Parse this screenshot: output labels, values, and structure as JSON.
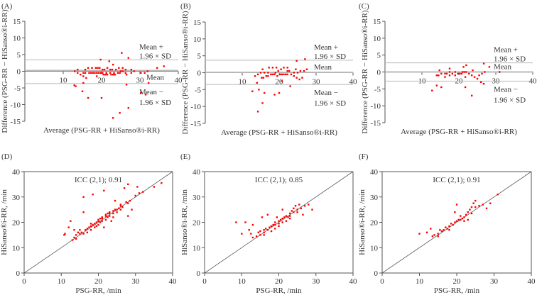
{
  "colors": {
    "points": "#ff0000",
    "axis": "#555555",
    "refline": "#b8b8b8",
    "identity": "#555555"
  },
  "chart_data": [
    {
      "panel": "(A)",
      "type": "scatter",
      "kind": "bland-altman",
      "source_pairs": "D",
      "xlabel": "Average (PSG-RR + HiSanso®i-RR)",
      "ylabel": "Difference (PSG-RR − HiSanso®i-RR)",
      "xlim": [
        0,
        40
      ],
      "ylim": [
        -15,
        15
      ],
      "xticks": [
        "10",
        "20",
        "30",
        "40"
      ],
      "yticks": [
        "15",
        "10",
        "5",
        "0",
        "-5",
        "-10",
        "-15"
      ],
      "mean": 0.2,
      "upper_loa": 3.4,
      "lower_loa": -3.7,
      "labels": {
        "upper1": "Mean +",
        "upper2": "1.96 × SD",
        "mean": "Mean",
        "lower1": "Mean −",
        "lower2": "1.96 × SD"
      }
    },
    {
      "panel": "(B)",
      "type": "scatter",
      "kind": "bland-altman",
      "source_pairs": "E",
      "xlabel": "Average (PSG-RR + HiSanso®i-RR)",
      "ylabel": "Difference (PSG-RR − HiSanso®i-RR)",
      "xlim": [
        0,
        40
      ],
      "ylim": [
        -15,
        15
      ],
      "xticks": [
        "10",
        "20",
        "30",
        "40"
      ],
      "yticks": [
        "15",
        "10",
        "5",
        "0",
        "-5",
        "-10",
        "-15"
      ],
      "mean": 0.1,
      "upper_loa": 3.7,
      "lower_loa": -3.5,
      "labels": {
        "upper1": "Mean +",
        "upper2": "1.96 × SD",
        "mean": "Mean",
        "lower1": "Mean −",
        "lower2": "1.96 × SD"
      }
    },
    {
      "panel": "(C)",
      "type": "scatter",
      "kind": "bland-altman",
      "source_pairs": "F",
      "xlabel": "Average (PSG-RR + HiSanso®i-RR)",
      "ylabel": "Difference (PSG-RR − HiSanso®i-RR)",
      "xlim": [
        0,
        40
      ],
      "ylim": [
        -15,
        15
      ],
      "xticks": [
        "10",
        "20",
        "30",
        "40"
      ],
      "yticks": [
        "15",
        "10",
        "5",
        "0",
        "-5",
        "-10",
        "-15"
      ],
      "mean": 0.0,
      "upper_loa": 2.7,
      "lower_loa": -2.7,
      "labels": {
        "upper1": "Mean +",
        "upper2": "1.96 × SD",
        "mean": "Mean",
        "lower1": "Mean −",
        "lower2": "1.96 × SD"
      }
    },
    {
      "panel": "(D)",
      "type": "scatter",
      "kind": "agreement",
      "xlabel": "PSG-RR, /min",
      "ylabel": "HiSanso®i-RR, /min",
      "xlim": [
        0,
        40
      ],
      "ylim": [
        0,
        40
      ],
      "xticks": [
        "0",
        "10",
        "20",
        "30",
        "40"
      ],
      "yticks": [
        "0",
        "10",
        "20",
        "30",
        "40"
      ],
      "annotation": "ICC (2,1); 0.91",
      "points": [
        [
          11,
          15.5
        ],
        [
          10.8,
          15
        ],
        [
          12,
          18
        ],
        [
          12.5,
          20.5
        ],
        [
          13,
          13
        ],
        [
          13.5,
          14
        ],
        [
          13.5,
          17
        ],
        [
          14,
          15
        ],
        [
          14.5,
          16
        ],
        [
          15,
          15.5
        ],
        [
          15,
          17
        ],
        [
          15.5,
          16
        ],
        [
          16,
          24
        ],
        [
          16,
          30
        ],
        [
          16.5,
          17
        ],
        [
          17,
          17.5
        ],
        [
          17.5,
          18
        ],
        [
          18,
          18.5
        ],
        [
          18.5,
          31
        ],
        [
          18.5,
          19
        ],
        [
          19,
          19.5
        ],
        [
          19.5,
          20
        ],
        [
          19.5,
          18.5
        ],
        [
          20,
          20.5
        ],
        [
          20,
          21
        ],
        [
          20.5,
          20
        ],
        [
          21,
          21.5
        ],
        [
          21,
          22
        ],
        [
          21.5,
          32.5
        ],
        [
          21.5,
          18
        ],
        [
          22,
          22.5
        ],
        [
          22,
          23
        ],
        [
          22.5,
          22
        ],
        [
          23,
          23.5
        ],
        [
          23,
          24
        ],
        [
          23.5,
          20.5
        ],
        [
          24,
          24.5
        ],
        [
          24,
          23.5
        ],
        [
          24.5,
          28.5
        ],
        [
          25,
          25
        ],
        [
          25.5,
          25.5
        ],
        [
          26,
          26.5
        ],
        [
          26.5,
          26
        ],
        [
          27,
          33.5
        ],
        [
          27.5,
          28
        ],
        [
          28,
          35
        ],
        [
          28,
          22.5
        ],
        [
          28,
          27.5
        ],
        [
          28.5,
          28.5
        ],
        [
          29,
          25
        ],
        [
          30,
          30.5
        ],
        [
          30.5,
          34
        ],
        [
          31,
          31.5
        ],
        [
          32,
          32
        ],
        [
          35,
          34
        ],
        [
          37,
          35.5
        ],
        [
          17,
          16
        ],
        [
          18,
          17
        ],
        [
          19,
          18
        ],
        [
          20,
          19
        ],
        [
          21,
          20.5
        ],
        [
          22,
          21
        ],
        [
          23,
          22.5
        ],
        [
          24,
          22
        ],
        [
          25,
          24
        ],
        [
          26,
          25
        ],
        [
          14,
          13.5
        ],
        [
          16,
          15.5
        ],
        [
          18,
          19.5
        ],
        [
          20.5,
          21.5
        ],
        [
          22.5,
          23.5
        ],
        [
          24.5,
          25
        ],
        [
          26,
          27
        ]
      ]
    },
    {
      "panel": "(E)",
      "type": "scatter",
      "kind": "agreement",
      "xlabel": "PSG-RR, /min",
      "ylabel": "HiSanso®i-RR, /min",
      "xlim": [
        0,
        40
      ],
      "ylim": [
        0,
        40
      ],
      "xticks": [
        "0",
        "10",
        "20",
        "30",
        "40"
      ],
      "yticks": [
        "0",
        "10",
        "20",
        "30",
        "40"
      ],
      "annotation": "ICC (2,1); 0.85",
      "points": [
        [
          8.5,
          20
        ],
        [
          10,
          15.5
        ],
        [
          11,
          20
        ],
        [
          12,
          17
        ],
        [
          12.5,
          15.5
        ],
        [
          13,
          14
        ],
        [
          13,
          19
        ],
        [
          14,
          14.5
        ],
        [
          14.5,
          16
        ],
        [
          15,
          15
        ],
        [
          15,
          16.5
        ],
        [
          15.5,
          22
        ],
        [
          16,
          16
        ],
        [
          16,
          17
        ],
        [
          16.5,
          17.5
        ],
        [
          17,
          17
        ],
        [
          17,
          23
        ],
        [
          17.5,
          18
        ],
        [
          18,
          18.5
        ],
        [
          18.5,
          19
        ],
        [
          19,
          19
        ],
        [
          19,
          20
        ],
        [
          19.5,
          22
        ],
        [
          20,
          20.5
        ],
        [
          20,
          19.5
        ],
        [
          20.5,
          21
        ],
        [
          21,
          21.5
        ],
        [
          21,
          25
        ],
        [
          21.5,
          22
        ],
        [
          22,
          22.5
        ],
        [
          22.5,
          22
        ],
        [
          23,
          23.5
        ],
        [
          23,
          21.5
        ],
        [
          23.5,
          24.5
        ],
        [
          24,
          24
        ],
        [
          24,
          25.5
        ],
        [
          24.5,
          26.5
        ],
        [
          25,
          25
        ],
        [
          25.5,
          27
        ],
        [
          26,
          25.5
        ],
        [
          26.5,
          23
        ],
        [
          27,
          26.5
        ],
        [
          28,
          27
        ],
        [
          29,
          25
        ],
        [
          19,
          17.5
        ],
        [
          20,
          18.5
        ],
        [
          22,
          20.5
        ],
        [
          18,
          16.5
        ],
        [
          16,
          15
        ],
        [
          21,
          20
        ],
        [
          23,
          22.5
        ],
        [
          25,
          24
        ]
      ]
    },
    {
      "panel": "(F)",
      "type": "scatter",
      "kind": "agreement",
      "xlabel": "PSG-RR, /min",
      "ylabel": "HiSanso®i-RR, /min",
      "xlim": [
        0,
        40
      ],
      "ylim": [
        0,
        40
      ],
      "xticks": [
        "0",
        "10",
        "20",
        "30",
        "40"
      ],
      "yticks": [
        "0",
        "10",
        "20",
        "30",
        "40"
      ],
      "annotation": "ICC (2,1); 0.91",
      "points": [
        [
          10,
          15.5
        ],
        [
          12,
          16
        ],
        [
          13,
          17.5
        ],
        [
          13.5,
          14.5
        ],
        [
          14,
          15
        ],
        [
          15,
          15.5
        ],
        [
          15.5,
          17
        ],
        [
          16,
          16.5
        ],
        [
          16.5,
          17
        ],
        [
          17,
          18
        ],
        [
          17.5,
          17.5
        ],
        [
          18,
          18.5
        ],
        [
          18.5,
          19.5
        ],
        [
          19,
          19
        ],
        [
          19.5,
          20
        ],
        [
          19.5,
          24
        ],
        [
          20,
          20.5
        ],
        [
          20,
          27
        ],
        [
          20.5,
          21
        ],
        [
          21,
          21
        ],
        [
          21,
          22.5
        ],
        [
          21.5,
          21.5
        ],
        [
          22,
          22
        ],
        [
          22.5,
          23
        ],
        [
          23,
          24
        ],
        [
          23,
          21
        ],
        [
          23.5,
          25
        ],
        [
          24,
          26
        ],
        [
          24,
          23.5
        ],
        [
          24.5,
          27.5
        ],
        [
          25,
          28.5
        ],
        [
          25,
          26
        ],
        [
          26,
          26.5
        ],
        [
          27,
          27
        ],
        [
          28,
          25.5
        ],
        [
          29,
          27.5
        ],
        [
          31,
          31
        ],
        [
          18,
          17
        ],
        [
          22,
          20.5
        ],
        [
          15,
          14.5
        ]
      ]
    }
  ]
}
